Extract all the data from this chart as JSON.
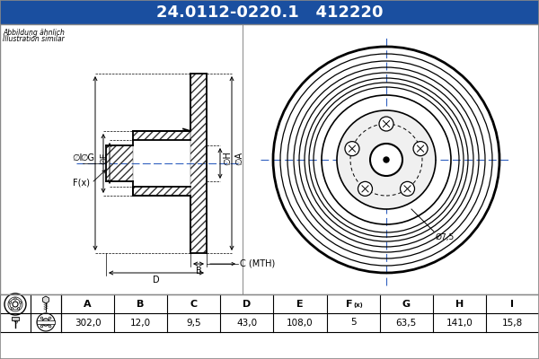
{
  "title_part": "24.0112-0220.1",
  "title_num": "412220",
  "title_bg": "#1a4fa0",
  "title_fg": "#ffffff",
  "subtitle1": "Abbildung ähnlich",
  "subtitle2": "Illustration similar",
  "table_headers": [
    "A",
    "B",
    "C",
    "D",
    "E",
    "F(x)",
    "G",
    "H",
    "I"
  ],
  "table_values": [
    "302,0",
    "12,0",
    "9,5",
    "43,0",
    "108,0",
    "5",
    "63,5",
    "141,0",
    "15,8"
  ],
  "bg_color": "#ffffff",
  "draw_bg": "#ffffff",
  "line_color": "#000000",
  "hatch_color": "#333333",
  "crosshair_color": "#3060c0",
  "table_border": "#000000",
  "annotation_phi": "Ø7,5"
}
